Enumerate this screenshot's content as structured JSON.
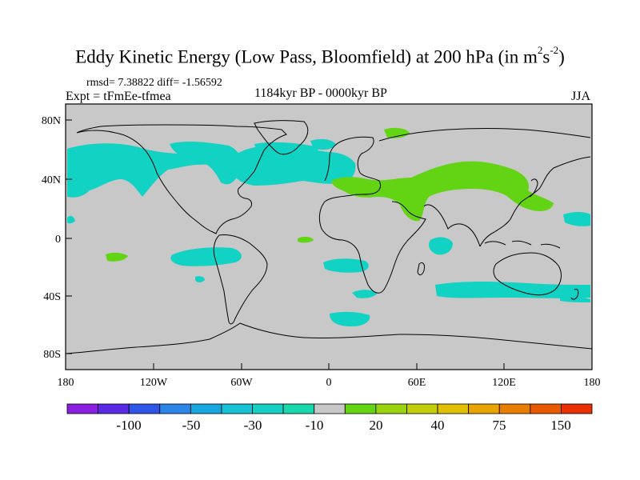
{
  "title": {
    "main": "Eddy Kinetic Energy (Low Pass, Bloomfield) at 200 hPa (in m",
    "sup1": "2",
    "mid": "s",
    "sup2": "-2",
    "end": ")"
  },
  "stats": "rmsd= 7.38822 diff= -1.56592",
  "expt": "Expt = tFmEe-tfmea",
  "period": "1184kyr BP - 0000kyr BP",
  "season": "JJA",
  "y_ticks": [
    "80N",
    "40N",
    "0",
    "40S",
    "80S"
  ],
  "x_ticks": [
    "180",
    "120W",
    "60W",
    "0",
    "60E",
    "120E",
    "180"
  ],
  "colorbar": {
    "labels": [
      "-100",
      "-50",
      "-30",
      "-10",
      "20",
      "40",
      "75",
      "150"
    ],
    "colors": [
      "#8a1fe0",
      "#5a2ae6",
      "#2f55e8",
      "#2b86e8",
      "#18a6de",
      "#17c2d6",
      "#14cfc2",
      "#1ad8ae",
      "#c8c8c8",
      "#62d410",
      "#9ad40e",
      "#c0cf0a",
      "#e0c000",
      "#e8a400",
      "#e87e00",
      "#e85a00",
      "#e83000"
    ]
  },
  "colors": {
    "land_bg": "#c8c8c8",
    "negative": "#12d2c4",
    "positive": "#62d414",
    "coast": "#000000"
  }
}
